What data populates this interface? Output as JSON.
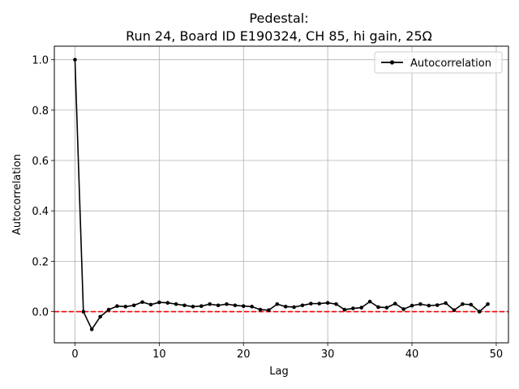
{
  "chart_data": {
    "type": "line",
    "title_line1": "Pedestal:",
    "title_line2": "Run 24, Board ID E190324, CH 85, hi gain, 25Ω",
    "xlabel": "Lag",
    "ylabel": "Autocorrelation",
    "xlim": [
      -2.45,
      51.45
    ],
    "ylim": [
      -0.1236,
      1.0536
    ],
    "x_ticks": [
      0,
      10,
      20,
      30,
      40,
      50
    ],
    "y_ticks": [
      0.0,
      0.2,
      0.4,
      0.6,
      0.8,
      1.0
    ],
    "x_tick_labels": [
      "0",
      "10",
      "20",
      "30",
      "40",
      "50"
    ],
    "y_tick_labels": [
      "0.0",
      "0.2",
      "0.4",
      "0.6",
      "0.8",
      "1.0"
    ],
    "grid": true,
    "legend_position": "top-right",
    "series": [
      {
        "name": "Autocorrelation",
        "color": "#000000",
        "marker": "circle",
        "x": [
          0,
          1,
          2,
          3,
          4,
          5,
          6,
          7,
          8,
          9,
          10,
          11,
          12,
          13,
          14,
          15,
          16,
          17,
          18,
          19,
          20,
          21,
          22,
          23,
          24,
          25,
          26,
          27,
          28,
          29,
          30,
          31,
          32,
          33,
          34,
          35,
          36,
          37,
          38,
          39,
          40,
          41,
          42,
          43,
          44,
          45,
          46,
          47,
          48,
          49
        ],
        "values": [
          1.0,
          0.0,
          -0.07,
          -0.02,
          0.008,
          0.022,
          0.02,
          0.025,
          0.038,
          0.028,
          0.037,
          0.035,
          0.03,
          0.025,
          0.02,
          0.022,
          0.03,
          0.025,
          0.03,
          0.025,
          0.022,
          0.02,
          0.008,
          0.006,
          0.03,
          0.02,
          0.018,
          0.025,
          0.032,
          0.032,
          0.035,
          0.03,
          0.008,
          0.013,
          0.016,
          0.04,
          0.018,
          0.016,
          0.032,
          0.01,
          0.024,
          0.03,
          0.024,
          0.026,
          0.034,
          0.006,
          0.03,
          0.028,
          0.0,
          0.03
        ]
      }
    ],
    "reference_line": {
      "y": 0.0,
      "color": "#ff0000",
      "style": "dashed"
    },
    "colors": {
      "grid": "#b0b0b0",
      "axes": "#000000"
    }
  }
}
